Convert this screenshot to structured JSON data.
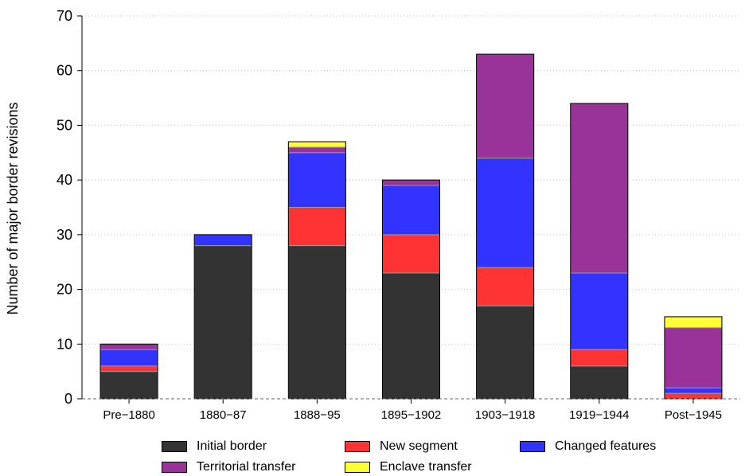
{
  "chart_data": {
    "type": "bar",
    "stacked": true,
    "ylabel": "Number of major border revisions",
    "xlabel": "",
    "ylim": [
      0,
      70
    ],
    "yticks": [
      0,
      10,
      20,
      30,
      40,
      50,
      60,
      70
    ],
    "grid": "horizontal dotted",
    "legend_position": "bottom",
    "categories": [
      "Pre−1880",
      "1880−87",
      "1888−95",
      "1895−1902",
      "1903−1918",
      "1919−1944",
      "Post−1945"
    ],
    "series": [
      {
        "name": "Initial border",
        "color": "#333333",
        "values": [
          5,
          28,
          28,
          23,
          17,
          6,
          0
        ]
      },
      {
        "name": "New segment",
        "color": "#ff3333",
        "values": [
          1,
          0,
          7,
          7,
          7,
          3,
          1
        ]
      },
      {
        "name": "Changed features",
        "color": "#3333ff",
        "values": [
          3,
          2,
          10,
          9,
          20,
          14,
          1
        ]
      },
      {
        "name": "Territorial transfer",
        "color": "#993399",
        "values": [
          1,
          0,
          1,
          1,
          19,
          31,
          11
        ]
      },
      {
        "name": "Enclave transfer",
        "color": "#ffff33",
        "values": [
          0,
          0,
          1,
          0,
          0,
          0,
          2
        ]
      }
    ]
  }
}
